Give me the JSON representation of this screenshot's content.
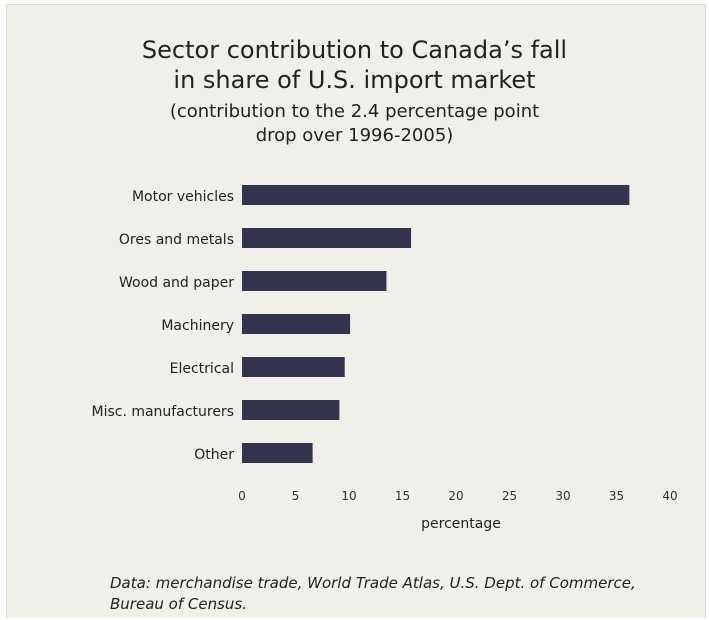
{
  "chart_data": {
    "type": "bar",
    "orientation": "horizontal",
    "title": "Sector contribution to Canada’s fall in share of U.S. import market",
    "title_lines": [
      "Sector contribution to Canada’s fall",
      "in share of U.S. import market"
    ],
    "subtitle": "(contribution to the 2.4 percentage point drop over 1996-2005)",
    "subtitle_lines": [
      "(contribution to the 2.4 percentage point",
      "drop over 1996-2005)"
    ],
    "categories": [
      "Motor vehicles",
      "Ores and metals",
      "Wood and paper",
      "Machinery",
      "Electrical",
      "Misc. manufacturers",
      "Other"
    ],
    "values": [
      36.2,
      15.8,
      13.5,
      10.1,
      9.6,
      9.1,
      6.6
    ],
    "xlabel": "percentage",
    "ylabel": "",
    "xlim": [
      0,
      40
    ],
    "xticks": [
      "0",
      "5",
      "10",
      "15",
      "20",
      "25",
      "30",
      "35",
      "40"
    ],
    "grid": false,
    "bar_color": "#34344e",
    "source": "Data: merchandise trade, World Trade Atlas, U.S. Dept. of Commerce, Bureau of Census.",
    "source_lines": [
      "Data: merchandise trade, World Trade Atlas, U.S. Dept. of Commerce,",
      "Bureau of Census."
    ]
  }
}
